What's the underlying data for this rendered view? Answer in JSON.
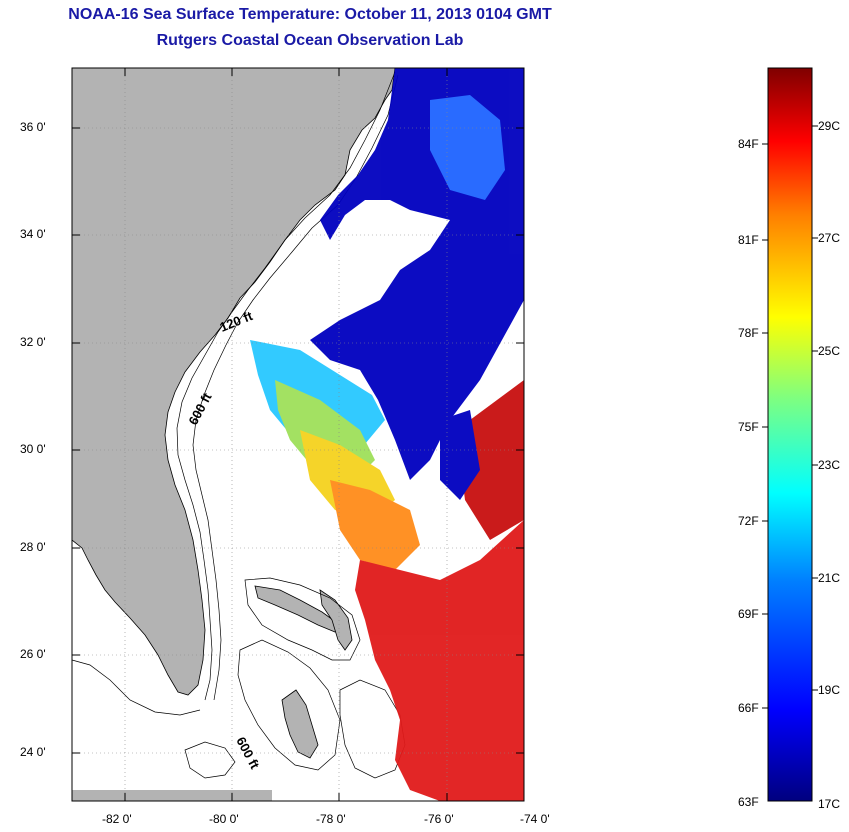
{
  "titles": {
    "line1": "NOAA-16 Sea Surface Temperature:  October 11, 2013 0104 GMT",
    "line2": "Rutgers Coastal Ocean Observation Lab"
  },
  "map": {
    "lat_ticks": [
      "36 0'",
      "34 0'",
      "32 0'",
      "30 0'",
      "28 0'",
      "26 0'",
      "24 0'"
    ],
    "lon_ticks": [
      "-82 0'",
      "-80 0'",
      "-78 0'",
      "-76 0'",
      "-74 0'"
    ],
    "contour_labels": [
      "120 ft",
      "600 ft",
      "600 ft"
    ],
    "colors": {
      "land": "#b3b3b3",
      "water_missing": "#ffffff",
      "title": "#1a1aa6"
    }
  },
  "colorbar": {
    "fahrenheit_labels": [
      "84F",
      "81F",
      "78F",
      "75F",
      "72F",
      "69F",
      "66F",
      "63F"
    ],
    "celsius_labels": [
      "29C",
      "27C",
      "25C",
      "23C",
      "21C",
      "19C",
      "17C"
    ],
    "colors": [
      "#00007f",
      "#0000ff",
      "#007fff",
      "#00ffff",
      "#7fff7f",
      "#ffff00",
      "#ff7f00",
      "#ff0000",
      "#7f0000"
    ]
  }
}
